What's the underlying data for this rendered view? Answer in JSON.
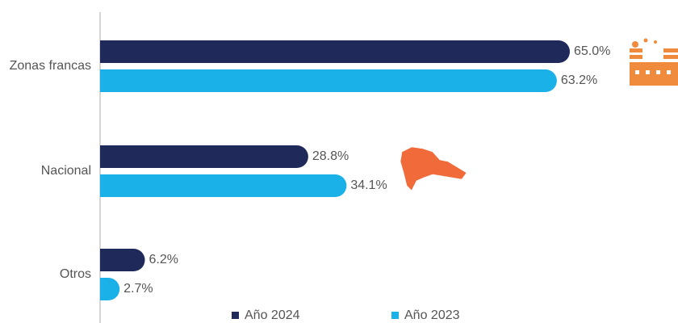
{
  "chart_data": {
    "type": "bar",
    "orientation": "horizontal",
    "categories": [
      "Zonas francas",
      "Nacional",
      "Otros"
    ],
    "series": [
      {
        "name": "Año 2024",
        "color": "#1f2a5a",
        "values": [
          65.0,
          28.8,
          6.2
        ],
        "value_labels": [
          "65.0%",
          "28.8%",
          "6.2%"
        ]
      },
      {
        "name": "Año 2023",
        "color": "#1ab0e8",
        "values": [
          63.2,
          34.1,
          2.7
        ],
        "value_labels": [
          "63.2%",
          "34.1%",
          "2.7%"
        ]
      }
    ],
    "xlim": [
      0,
      65
    ]
  }
}
